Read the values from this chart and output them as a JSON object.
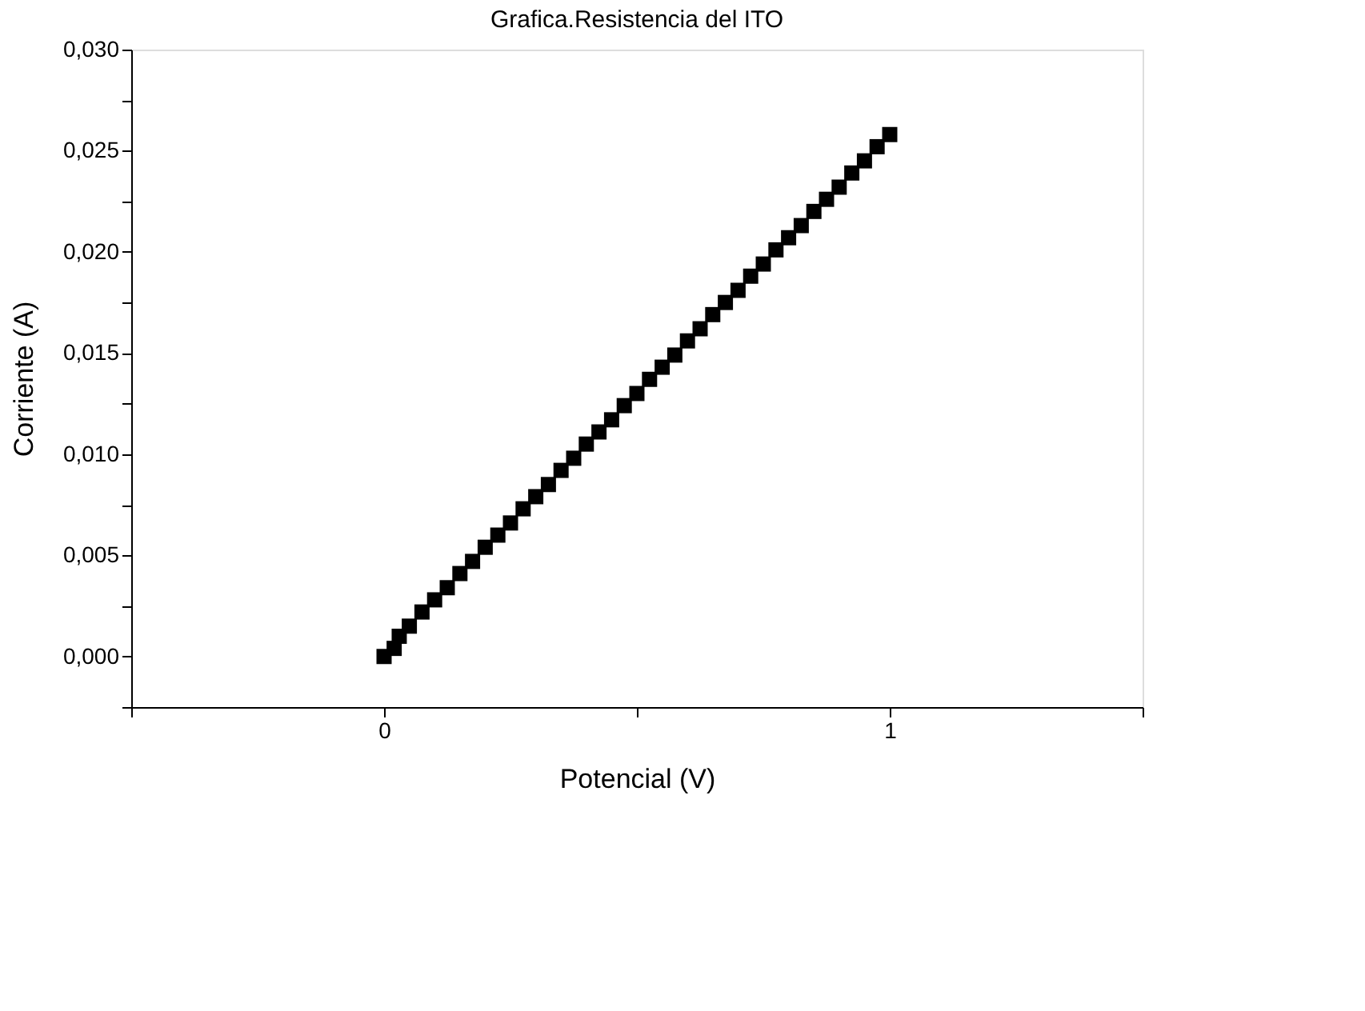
{
  "chart_data": {
    "type": "scatter",
    "title": "Grafica.Resistencia del ITO",
    "xlabel": "Potencial (V)",
    "ylabel": "Corriente (A)",
    "xlim": [
      -0.5,
      1.5
    ],
    "ylim": [
      -0.0025,
      0.03
    ],
    "xticks": [
      {
        "value": -0.5,
        "label": null
      },
      0,
      {
        "value": 0.5,
        "label": null
      },
      1,
      {
        "value": 1.5,
        "label": null
      }
    ],
    "yticks": [
      {
        "value": -0.0025,
        "label": null
      },
      {
        "value": 0,
        "label": "0,000"
      },
      {
        "value": 0.0025,
        "label": null
      },
      {
        "value": 0.005,
        "label": "0,005"
      },
      {
        "value": 0.0075,
        "label": null
      },
      {
        "value": 0.01,
        "label": "0,010"
      },
      {
        "value": 0.0125,
        "label": null
      },
      {
        "value": 0.015,
        "label": "0,015"
      },
      {
        "value": 0.0175,
        "label": null
      },
      {
        "value": 0.02,
        "label": "0,020"
      },
      {
        "value": 0.0225,
        "label": null
      },
      {
        "value": 0.025,
        "label": "0,025"
      },
      {
        "value": 0.0275,
        "label": null
      },
      {
        "value": 0.03,
        "label": "0,030"
      }
    ],
    "grid": false,
    "legend": false,
    "marker": "square",
    "series": [
      {
        "color": "#000000",
        "x": [
          0,
          0.02,
          0.03,
          0.05,
          0.075,
          0.1,
          0.125,
          0.15,
          0.175,
          0.2,
          0.225,
          0.25,
          0.275,
          0.3,
          0.325,
          0.35,
          0.375,
          0.4,
          0.425,
          0.45,
          0.475,
          0.5,
          0.525,
          0.55,
          0.575,
          0.6,
          0.625,
          0.65,
          0.675,
          0.7,
          0.725,
          0.75,
          0.775,
          0.8,
          0.825,
          0.85,
          0.875,
          0.9,
          0.925,
          0.95,
          0.975,
          1.0
        ],
        "values": [
          0,
          0.0004,
          0.001,
          0.0015,
          0.0022,
          0.0028,
          0.0034,
          0.0041,
          0.0047,
          0.0054,
          0.006,
          0.0066,
          0.0073,
          0.0079,
          0.0085,
          0.0092,
          0.0098,
          0.0105,
          0.0111,
          0.0117,
          0.0124,
          0.013,
          0.0137,
          0.0143,
          0.0149,
          0.0156,
          0.0162,
          0.0169,
          0.0175,
          0.0181,
          0.0188,
          0.0194,
          0.0201,
          0.0207,
          0.0213,
          0.022,
          0.0226,
          0.0232,
          0.0239,
          0.0245,
          0.0252,
          0.0258
        ]
      }
    ]
  }
}
